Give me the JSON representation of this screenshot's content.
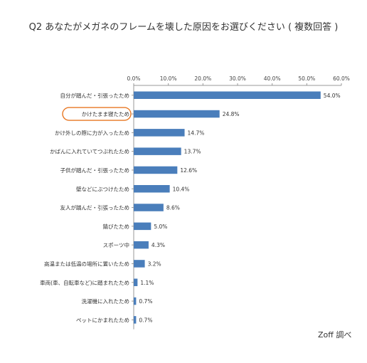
{
  "title": "Q2 あなたがメガネのフレームを壊した原因をお選びください ( 複数回答 )",
  "source_note": "Zoff 調べ",
  "colors": {
    "bar": "#4A7EBB",
    "highlight_outline": "#E87722",
    "axis": "#999999",
    "grid": "#D9D9D9"
  },
  "chart_data": {
    "type": "bar",
    "orientation": "horizontal",
    "title": "Q2 あなたがメガネのフレームを壊した原因をお選びください ( 複数回答 )",
    "xlim": [
      0,
      60
    ],
    "x_ticks": [
      "0.0%",
      "10.0%",
      "20.0%",
      "30.0%",
      "40.0%",
      "50.0%",
      "60.0%"
    ],
    "x_tick_values": [
      0,
      10,
      20,
      30,
      40,
      50,
      60
    ],
    "grid": false,
    "highlighted_category_index": 1,
    "categories": [
      "自分が踏んだ・引張ったため",
      "かけたまま寝たため",
      "かけ外しの際に力が入ったため",
      "かばんに入れていてつぶれたため",
      "子供が踏んだ・引張ったため",
      "壁などにぶつけたため",
      "友人が踏んだ・引張ったため",
      "錆びたため",
      "スポーツ中",
      "高温または低温の場所に置いたため",
      "車両(車、自転車など)に踏まれたため",
      "洗濯機に入れたため",
      "ペットにかまれたため"
    ],
    "values": [
      54.0,
      24.8,
      14.7,
      13.7,
      12.6,
      10.4,
      8.6,
      5.0,
      4.3,
      3.2,
      1.1,
      0.7,
      0.7
    ],
    "value_labels": [
      "54.0%",
      "24.8%",
      "14.7%",
      "13.7%",
      "12.6%",
      "10.4%",
      "8.6%",
      "5.0%",
      "4.3%",
      "3.2%",
      "1.1%",
      "0.7%",
      "0.7%"
    ]
  }
}
